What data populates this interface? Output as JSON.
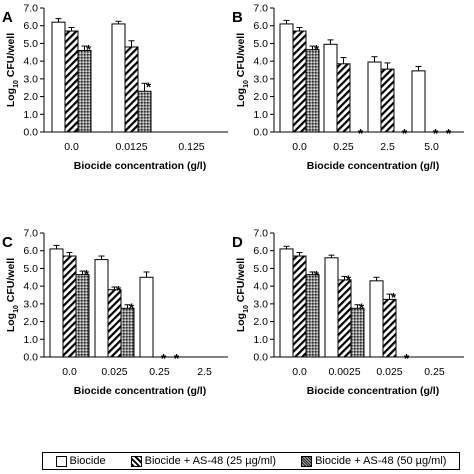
{
  "panels": [
    {
      "letter": "A",
      "xlabel": "Biocide concentration (g/l)"
    },
    {
      "letter": "B",
      "xlabel": "Biocide concentration (g/l)"
    },
    {
      "letter": "C",
      "xlabel": "Biocide concentration (g/l)"
    },
    {
      "letter": "D",
      "xlabel": "Biocide concentration (g/l)"
    }
  ],
  "legend": {
    "items": [
      {
        "label": "Biocide",
        "pattern": "white"
      },
      {
        "label": "Biocide + AS-48 (25 µg/ml)",
        "pattern": "diagonal-hatch"
      },
      {
        "label": "Biocide + AS-48 (50 µg/ml)",
        "pattern": "crosshatch"
      }
    ]
  },
  "significance_marker": "*",
  "chart_data": [
    {
      "type": "bar",
      "panel": "A",
      "ylabel": "Log10 CFU/well",
      "xlabel": "Biocide concentration (g/l)",
      "ylim": [
        0,
        7
      ],
      "yticks": [
        "0.0",
        "1.0",
        "2.0",
        "3.0",
        "4.0",
        "5.0",
        "6.0",
        "7.0"
      ],
      "categories": [
        "0.0",
        "0.0125",
        "0.125"
      ],
      "series": [
        {
          "name": "Biocide",
          "values": [
            6.2,
            6.1,
            0
          ],
          "errors": [
            0.2,
            0.15,
            0
          ],
          "sig": [
            false,
            false,
            false
          ]
        },
        {
          "name": "Biocide + AS-48 (25 µg/ml)",
          "values": [
            5.7,
            4.8,
            0
          ],
          "errors": [
            0.2,
            0.35,
            0
          ],
          "sig": [
            false,
            false,
            false
          ]
        },
        {
          "name": "Biocide + AS-48 (50 µg/ml)",
          "values": [
            4.6,
            2.3,
            0
          ],
          "errors": [
            0.25,
            0.45,
            0
          ],
          "sig": [
            true,
            true,
            false
          ]
        }
      ]
    },
    {
      "type": "bar",
      "panel": "B",
      "ylabel": "Log10 CFU/well",
      "xlabel": "Biocide concentration (g/l)",
      "ylim": [
        0,
        7
      ],
      "yticks": [
        "0.0",
        "1.0",
        "2.0",
        "3.0",
        "4.0",
        "5.0",
        "6.0",
        "7.0"
      ],
      "categories": [
        "0.0",
        "0.25",
        "2.5",
        "5.0"
      ],
      "series": [
        {
          "name": "Biocide",
          "values": [
            6.1,
            4.95,
            3.95,
            3.45
          ],
          "errors": [
            0.2,
            0.25,
            0.3,
            0.25
          ],
          "sig": [
            false,
            false,
            false,
            false
          ]
        },
        {
          "name": "Biocide + AS-48 (25 µg/ml)",
          "values": [
            5.7,
            3.85,
            3.55,
            0
          ],
          "errors": [
            0.2,
            0.35,
            0.35,
            0
          ],
          "sig": [
            false,
            false,
            false,
            true
          ]
        },
        {
          "name": "Biocide + AS-48 (50 µg/ml)",
          "values": [
            4.65,
            0,
            0,
            0
          ],
          "errors": [
            0.2,
            0,
            0,
            0
          ],
          "sig": [
            true,
            true,
            true,
            true
          ]
        }
      ]
    },
    {
      "type": "bar",
      "panel": "C",
      "ylabel": "Log10 CFU/well",
      "xlabel": "Biocide concentration (g/l)",
      "ylim": [
        0,
        7
      ],
      "yticks": [
        "0.0",
        "1.0",
        "2.0",
        "3.0",
        "4.0",
        "5.0",
        "6.0",
        "7.0"
      ],
      "categories": [
        "0.0",
        "0.025",
        "0.25",
        "2.5"
      ],
      "series": [
        {
          "name": "Biocide",
          "values": [
            6.1,
            5.5,
            4.5,
            0
          ],
          "errors": [
            0.2,
            0.2,
            0.3,
            0
          ],
          "sig": [
            false,
            false,
            false,
            false
          ]
        },
        {
          "name": "Biocide + AS-48 (25 µg/ml)",
          "values": [
            5.7,
            3.8,
            0,
            0
          ],
          "errors": [
            0.2,
            0.15,
            0,
            0
          ],
          "sig": [
            false,
            true,
            true,
            false
          ]
        },
        {
          "name": "Biocide + AS-48 (50 µg/ml)",
          "values": [
            4.65,
            2.75,
            0,
            0
          ],
          "errors": [
            0.2,
            0.2,
            0,
            0
          ],
          "sig": [
            true,
            true,
            true,
            false
          ]
        }
      ]
    },
    {
      "type": "bar",
      "panel": "D",
      "ylabel": "Log10 CFU/well",
      "xlabel": "Biocide concentration (g/l)",
      "ylim": [
        0,
        7
      ],
      "yticks": [
        "0.0",
        "1.0",
        "2.0",
        "3.0",
        "4.0",
        "5.0",
        "6.0",
        "7.0"
      ],
      "categories": [
        "0.0",
        "0.0025",
        "0.025",
        "0.25"
      ],
      "series": [
        {
          "name": "Biocide",
          "values": [
            6.1,
            5.6,
            4.3,
            0
          ],
          "errors": [
            0.15,
            0.15,
            0.2,
            0
          ],
          "sig": [
            false,
            false,
            false,
            false
          ]
        },
        {
          "name": "Biocide + AS-48 (25 µg/ml)",
          "values": [
            5.7,
            4.35,
            3.25,
            0
          ],
          "errors": [
            0.2,
            0.2,
            0.3,
            0
          ],
          "sig": [
            false,
            true,
            true,
            false
          ]
        },
        {
          "name": "Biocide + AS-48 (50 µg/ml)",
          "values": [
            4.65,
            2.75,
            0,
            0
          ],
          "errors": [
            0.15,
            0.2,
            0,
            0
          ],
          "sig": [
            true,
            true,
            true,
            false
          ]
        }
      ]
    }
  ]
}
